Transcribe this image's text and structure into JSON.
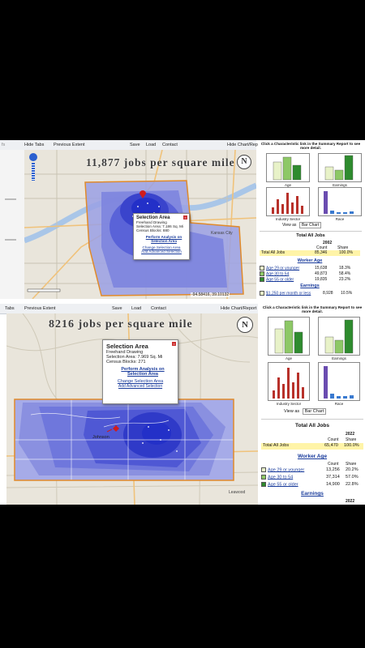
{
  "panel1": {
    "toolbar": {
      "hide_tabs": "Hide Tabs",
      "previous_extent": "Previous Extent",
      "save": "Save",
      "load": "Load",
      "contact": "Contact",
      "hide_chart": "Hide Chart/Report"
    },
    "map_title": "11,877 jobs per square mile",
    "popup": {
      "title": "Selection Area",
      "drawing": "Freehand Drawing",
      "area": "Selection Area: 7.186 Sq. Mi",
      "blocks": "Census Blocks: 880",
      "perform": "Perform Analysis on Selection Area",
      "change": "Change Selection Area",
      "advanced": "Add Advanced Selection"
    },
    "coords": "-94.58416, 39.10132",
    "place": "Kansas City",
    "side": {
      "instruction": "Click a Characteristic link in the Summary Report to see more detail.",
      "thumbs": [
        "Age",
        "Earnings",
        "Industry Sector",
        "Race"
      ],
      "view_as_label": "View as",
      "view_as_value": "Bar Chart",
      "total_title": "Total All Jobs",
      "year": "2002",
      "count_hdr": "Count",
      "share_hdr": "Share",
      "total_label": "Total All Jobs",
      "total_count": "85,346",
      "total_share": "100.0%",
      "worker_age": "Worker Age",
      "rows": [
        {
          "label": "Age 29 or younger",
          "count": "15,638",
          "share": "18.3%",
          "color": "#e8f2c8"
        },
        {
          "label": "Age 30 to 54",
          "count": "49,873",
          "share": "58.4%",
          "color": "#8dc866"
        },
        {
          "label": "Age 55 or older",
          "count": "19,835",
          "share": "23.2%",
          "color": "#2e8b2e"
        }
      ],
      "earnings": "Earnings",
      "earn_row": "$1,250 per month or less",
      "earn_count": "8,928",
      "earn_share": "10.5%"
    }
  },
  "panel2": {
    "toolbar": {
      "tabs": "Tabs",
      "previous_extent": "Previous Extent",
      "save": "Save",
      "load": "Load",
      "contact": "Contact",
      "hide_chart": "Hide Chart/Report"
    },
    "map_title": "8216 jobs per square mile",
    "popup": {
      "title": "Selection Area",
      "drawing": "Freehand Drawing",
      "area": "Selection Area: 7.969 Sq. Mi",
      "blocks": "Census Blocks: 271",
      "perform": "Perform Analysis on Selection Area",
      "change": "Change Selection Area",
      "advanced": "Add Advanced Selection"
    },
    "place1": "Johnson",
    "place2": "Leawood",
    "side": {
      "instruction": "Click a Characteristic link in the Summary Report to see more detail.",
      "thumbs": [
        "Age",
        "Earnings",
        "Industry Sector",
        "Race"
      ],
      "view_as_label": "View as",
      "view_as_value": "Bar Chart",
      "total_title": "Total All Jobs",
      "year": "2022",
      "count_hdr": "Count",
      "share_hdr": "Share",
      "total_label": "Total All Jobs",
      "total_count": "65,470",
      "total_share": "100.0%",
      "worker_age": "Worker Age",
      "rows": [
        {
          "label": "Age 29 or younger",
          "count": "13,256",
          "share": "20.2%",
          "color": "#e8f2c8"
        },
        {
          "label": "Age 30 to 54",
          "count": "37,314",
          "share": "57.0%",
          "color": "#8dc866"
        },
        {
          "label": "Age 55 or older",
          "count": "14,900",
          "share": "22.8%",
          "color": "#2e8b2e"
        }
      ],
      "earnings": "Earnings",
      "year2": "2022"
    }
  },
  "colors": {
    "density_dark": "#2330c8",
    "density_mid": "#5a63d8",
    "density_light": "#9aa0e4",
    "selection_border": "#e08a2a"
  }
}
